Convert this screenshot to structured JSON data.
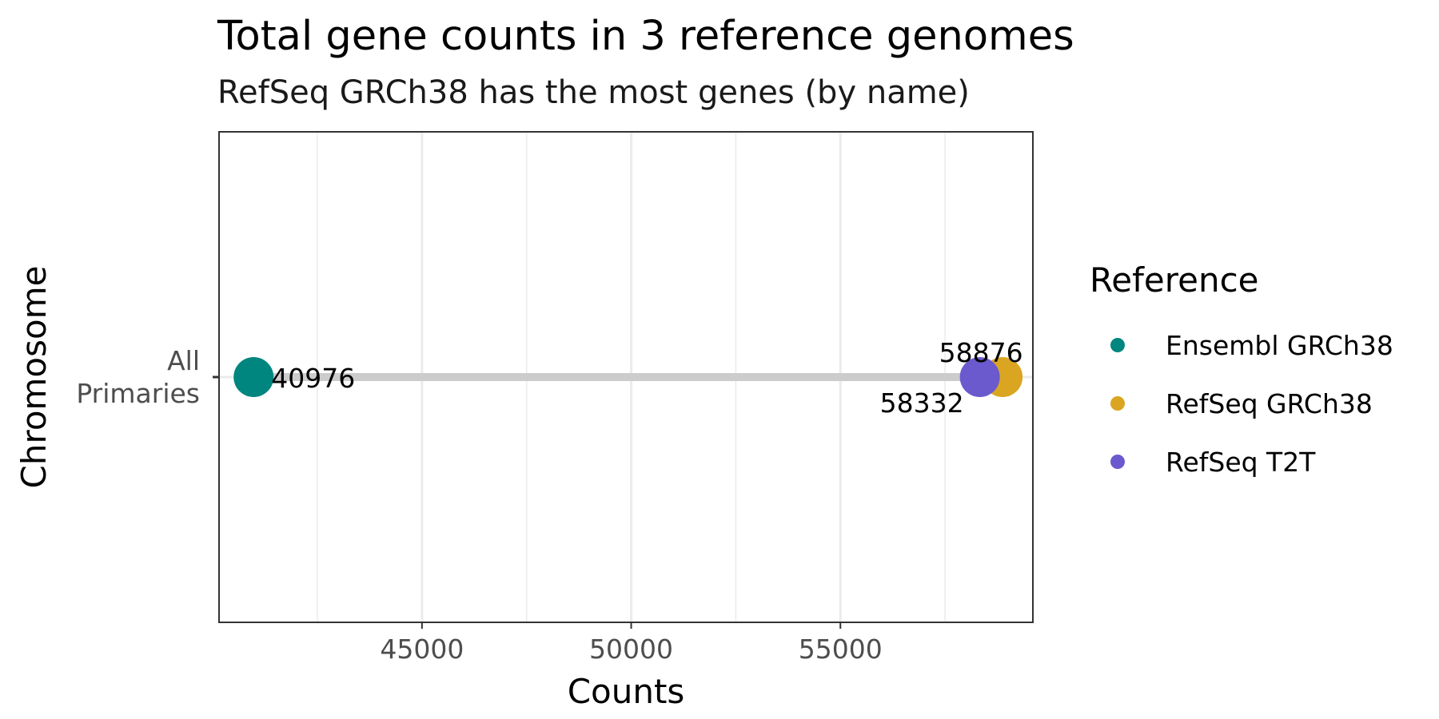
{
  "chart_data": {
    "type": "scatter",
    "title": "Total gene counts in 3 reference genomes",
    "subtitle": "RefSeq GRCh38 has the most genes (by name)",
    "xlabel": "Counts",
    "ylabel": "Chromosome",
    "categories": [
      "All\nPrimaries"
    ],
    "xlim": [
      40150,
      59600
    ],
    "x_ticks": [
      45000,
      50000,
      55000
    ],
    "x_minor_ticks": [
      42500,
      47500,
      52500,
      57500
    ],
    "grid": true,
    "legend": {
      "title": "Reference",
      "position": "right"
    },
    "series": [
      {
        "name": "Ensembl GRCh38",
        "color": "#00857F",
        "values": [
          40976
        ],
        "label": "40976"
      },
      {
        "name": "RefSeq GRCh38",
        "color": "#DAA520",
        "values": [
          58876
        ],
        "label": "58876"
      },
      {
        "name": "RefSeq T2T",
        "color": "#6A5ACD",
        "values": [
          58332
        ],
        "label": "58332"
      }
    ],
    "segment": {
      "color": "#CCCCCC",
      "from": 40976,
      "to": 58876
    }
  }
}
